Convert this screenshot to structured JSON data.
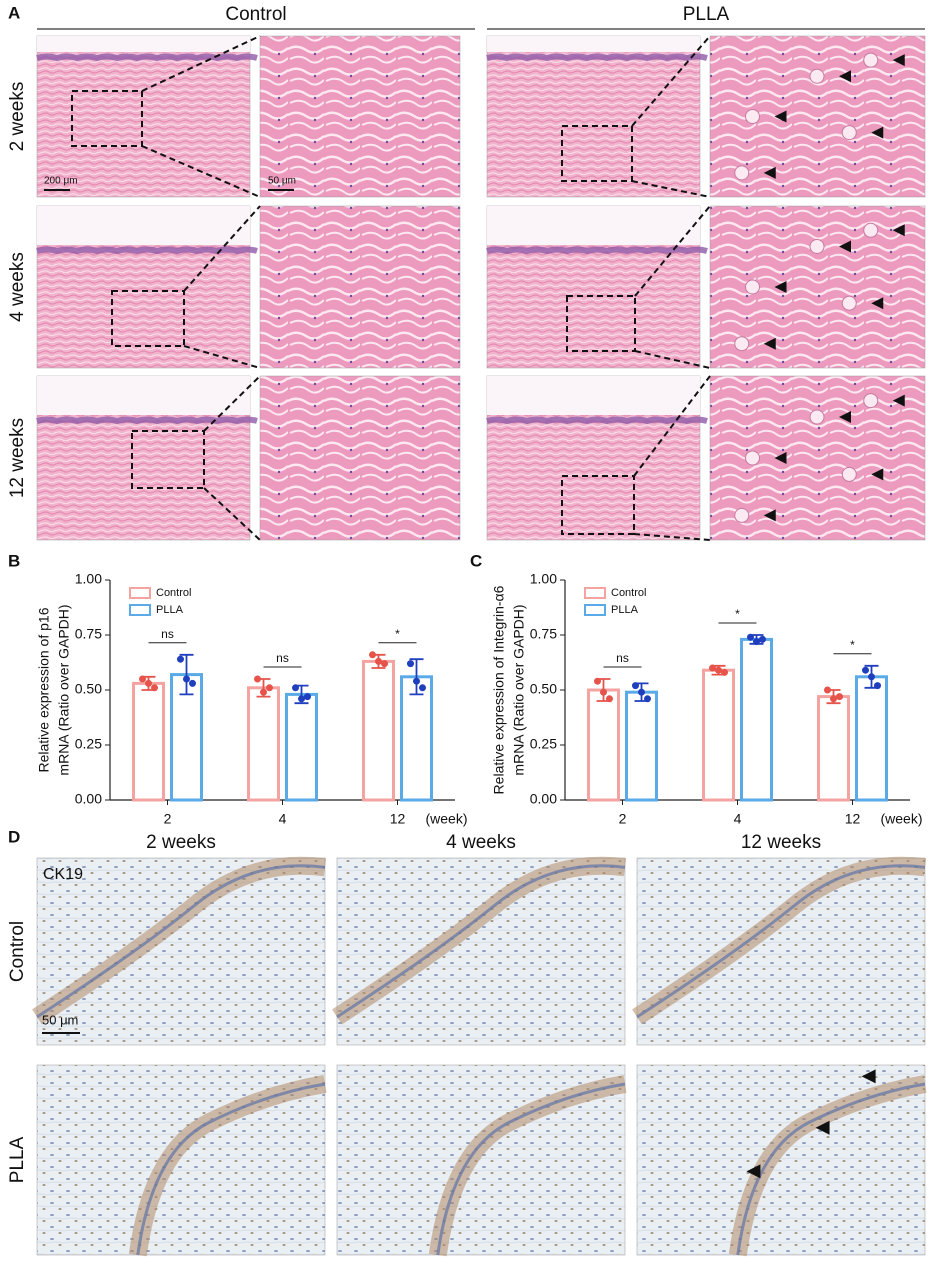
{
  "panel_labels": [
    "A",
    "B",
    "C",
    "D"
  ],
  "he_staining": {
    "columns": [
      "Control",
      "PLLA"
    ],
    "rows": [
      "2 weeks",
      "4 weeks",
      "12 weeks"
    ],
    "scale_bars": [
      "200 μm",
      "50 μm"
    ]
  },
  "chart_data": [
    {
      "type": "bar",
      "ylabel": [
        "Relative expression of p16",
        "mRNA (Ratio over GAPDH)"
      ],
      "xlabel": "(week)",
      "categories": [
        "2",
        "4",
        "12"
      ],
      "series": [
        {
          "name": "Control",
          "color": "#f4a3a0",
          "point_color": "#e5534b",
          "values": [
            0.53,
            0.51,
            0.63
          ],
          "errors": [
            0.03,
            0.04,
            0.03
          ],
          "points": [
            [
              0.55,
              0.53,
              0.51
            ],
            [
              0.55,
              0.49,
              0.51
            ],
            [
              0.66,
              0.63,
              0.62
            ]
          ]
        },
        {
          "name": "PLLA",
          "color": "#5aaae8",
          "point_color": "#1f3fbf",
          "values": [
            0.57,
            0.48,
            0.56
          ],
          "errors": [
            0.09,
            0.04,
            0.08
          ],
          "points": [
            [
              0.64,
              0.55,
              0.53
            ],
            [
              0.51,
              0.46,
              0.47
            ],
            [
              0.62,
              0.54,
              0.51
            ]
          ]
        }
      ],
      "significance": [
        "ns",
        "ns",
        "*"
      ],
      "ylim": [
        0,
        1
      ],
      "yticks": [
        {
          "value": 0,
          "label": "0.00"
        },
        {
          "value": 0.25,
          "label": "0.25"
        },
        {
          "value": 0.5,
          "label": "0.50"
        },
        {
          "value": 0.75,
          "label": "0.75"
        },
        {
          "value": 1,
          "label": "1.00"
        }
      ]
    },
    {
      "type": "bar",
      "ylabel": [
        "Relative expression of Integrin-α6",
        "mRNA (Ratio over GAPDH)"
      ],
      "xlabel": "(week)",
      "categories": [
        "2",
        "4",
        "12"
      ],
      "series": [
        {
          "name": "Control",
          "color": "#f4a3a0",
          "point_color": "#e5534b",
          "values": [
            0.5,
            0.59,
            0.47
          ],
          "errors": [
            0.05,
            0.02,
            0.03
          ],
          "points": [
            [
              0.54,
              0.49,
              0.46
            ],
            [
              0.6,
              0.59,
              0.58
            ],
            [
              0.5,
              0.46,
              0.47
            ]
          ]
        },
        {
          "name": "PLLA",
          "color": "#5aaae8",
          "point_color": "#1f3fbf",
          "values": [
            0.49,
            0.73,
            0.56
          ],
          "errors": [
            0.04,
            0.02,
            0.05
          ],
          "points": [
            [
              0.52,
              0.49,
              0.46
            ],
            [
              0.74,
              0.72,
              0.73
            ],
            [
              0.59,
              0.56,
              0.52
            ]
          ]
        }
      ],
      "significance": [
        "ns",
        "*",
        "*"
      ],
      "ylim": [
        0,
        1
      ],
      "yticks": [
        {
          "value": 0,
          "label": "0.00"
        },
        {
          "value": 0.25,
          "label": "0.25"
        },
        {
          "value": 0.5,
          "label": "0.50"
        },
        {
          "value": 0.75,
          "label": "0.75"
        },
        {
          "value": 1,
          "label": "1.00"
        }
      ]
    }
  ],
  "ck19": {
    "marker": "CK19",
    "columns": [
      "2 weeks",
      "4 weeks",
      "12 weeks"
    ],
    "rows": [
      "Control",
      "PLLA"
    ],
    "scale_bar": "50 μm"
  }
}
